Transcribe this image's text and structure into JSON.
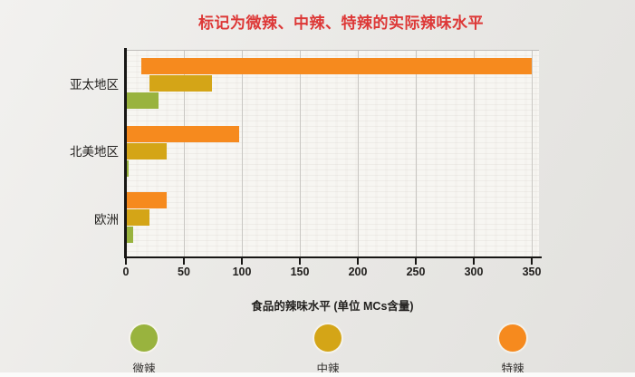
{
  "chart_data": {
    "type": "bar",
    "orientation": "horizontal",
    "title": "标记为微辣、中辣、特辣的实际辣味水平",
    "title_color": "#dd3837",
    "xlabel": "食品的辣味水平 (单位 MCs含量)",
    "ylabel": "",
    "xlim": [
      0,
      356
    ],
    "xticks": [
      0,
      50,
      100,
      150,
      200,
      250,
      300,
      350
    ],
    "grid": "vertical",
    "legend_position": "bottom",
    "categories": [
      "亚太地区",
      "北美地区",
      "欧洲"
    ],
    "series": [
      {
        "name": "特辣",
        "color": "#f68a1e",
        "bars": [
          {
            "start": 13,
            "end": 350
          },
          {
            "start": 0,
            "end": 98
          },
          {
            "start": 0,
            "end": 35
          }
        ]
      },
      {
        "name": "中辣",
        "color": "#d4a517",
        "bars": [
          {
            "start": 20,
            "end": 74
          },
          {
            "start": 0,
            "end": 35
          },
          {
            "start": 0,
            "end": 20
          }
        ]
      },
      {
        "name": "微辣",
        "color": "#99b33e",
        "bars": [
          {
            "start": 0,
            "end": 28
          },
          {
            "start": 0,
            "end": 2
          },
          {
            "start": 0,
            "end": 6
          }
        ]
      }
    ]
  },
  "legend": {
    "items": [
      {
        "label": "微辣",
        "color": "#99b33e"
      },
      {
        "label": "中辣",
        "color": "#d4a517"
      },
      {
        "label": "特辣",
        "color": "#f68a1e"
      }
    ]
  }
}
